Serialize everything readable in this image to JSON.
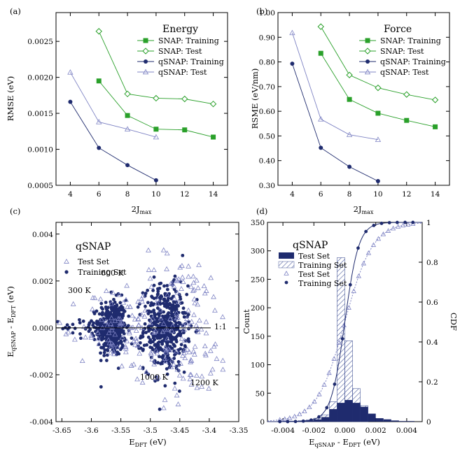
{
  "colors": {
    "green": "#2aa02a",
    "navy": "#1f2b6e",
    "hatch": "#4a5a9a",
    "lavender": "#7f84c4"
  },
  "chart_data": [
    {
      "panel": "(a)",
      "type": "line",
      "title": "Energy",
      "xlabel": "2J",
      "xlabel_sub": "max",
      "ylabel": "RMSE (eV)",
      "xlim": [
        3,
        15
      ],
      "ylim": [
        0.0005,
        0.0029
      ],
      "xticks": [
        "4",
        "6",
        "8",
        "10",
        "12",
        "14"
      ],
      "yticks": [
        "0.0005",
        "0.0010",
        "0.0015",
        "0.0020",
        "0.0025"
      ],
      "legend_position": "top-right",
      "series": [
        {
          "name": "SNAP: Training",
          "marker": "square",
          "color": "#2aa02a",
          "x": [
            6,
            8,
            10,
            12,
            14
          ],
          "y": [
            0.00195,
            0.00147,
            0.00128,
            0.00127,
            0.00117
          ]
        },
        {
          "name": "SNAP: Test",
          "marker": "diamond-open",
          "color": "#2aa02a",
          "x": [
            6,
            8,
            10,
            12,
            14
          ],
          "y": [
            0.00264,
            0.00177,
            0.00171,
            0.0017,
            0.00163
          ]
        },
        {
          "name": "qSNAP: Training",
          "marker": "circle",
          "color": "#1f2b6e",
          "x": [
            4,
            6,
            8,
            10
          ],
          "y": [
            0.00166,
            0.00102,
            0.00078,
            0.00057
          ]
        },
        {
          "name": "qSNAP: Test",
          "marker": "triangle-open",
          "color": "#7f84c4",
          "x": [
            4,
            6,
            8,
            10
          ],
          "y": [
            0.00207,
            0.00138,
            0.00128,
            0.00117
          ]
        }
      ]
    },
    {
      "panel": "(b)",
      "type": "line",
      "title": "Force",
      "xlabel": "2J",
      "xlabel_sub": "max",
      "ylabel": "RSME (eV/nm)",
      "xlim": [
        3,
        15
      ],
      "ylim": [
        0.3,
        1.0
      ],
      "xticks": [
        "4",
        "6",
        "8",
        "10",
        "12",
        "14"
      ],
      "yticks": [
        "0.30",
        "0.40",
        "0.50",
        "0.60",
        "0.70",
        "0.80",
        "0.90",
        "1.00"
      ],
      "legend_position": "top-right",
      "series": [
        {
          "name": "SNAP: Training",
          "marker": "square",
          "color": "#2aa02a",
          "x": [
            6,
            8,
            10,
            12,
            14
          ],
          "y": [
            0.835,
            0.648,
            0.592,
            0.563,
            0.537
          ]
        },
        {
          "name": "SNAP: Test",
          "marker": "diamond-open",
          "color": "#2aa02a",
          "x": [
            6,
            8,
            10,
            12,
            14
          ],
          "y": [
            0.943,
            0.747,
            0.695,
            0.668,
            0.646
          ]
        },
        {
          "name": "qSNAP: Training",
          "marker": "circle",
          "color": "#1f2b6e",
          "x": [
            4,
            6,
            8,
            10
          ],
          "y": [
            0.793,
            0.452,
            0.375,
            0.317
          ]
        },
        {
          "name": "qSNAP: Test",
          "marker": "triangle-open",
          "color": "#7f84c4",
          "x": [
            4,
            6,
            8,
            10
          ],
          "y": [
            0.918,
            0.568,
            0.505,
            0.485
          ]
        }
      ]
    },
    {
      "panel": "(c)",
      "type": "scatter",
      "title": "qSNAP",
      "xlabel": "E",
      "xlabel_sub": "DFT",
      "xlabel_tail": " (eV)",
      "ylabel": "E",
      "ylabel_sub1": "qSNAP",
      "ylabel_mid": " - E",
      "ylabel_sub2": "DFT",
      "ylabel_tail": " (eV)",
      "xlim": [
        -3.66,
        -3.35
      ],
      "ylim": [
        -0.004,
        0.0045
      ],
      "xticks": [
        "-3.65",
        "-3.6",
        "-3.55",
        "-3.5",
        "-3.45",
        "-3.4",
        "-3.35"
      ],
      "yticks": [
        "-0.004",
        "-0.002",
        "0.000",
        "0.002",
        "0.004"
      ],
      "legend": [
        "Test Set",
        "Training Set"
      ],
      "annotations": [
        "300 K",
        "600 K",
        "1000 K",
        "1200 K",
        "1:1"
      ],
      "clusters": [
        {
          "name": "Training Set",
          "cx": -3.565,
          "cy": 0.0,
          "sx": 0.012,
          "sy": 0.0006,
          "n": 420,
          "marker": "circle"
        },
        {
          "name": "Training Set",
          "cx": -3.475,
          "cy": 0.0,
          "sx": 0.018,
          "sy": 0.0009,
          "n": 480,
          "marker": "circle"
        },
        {
          "name": "Training Set",
          "cx": -3.6,
          "cy": 0.0,
          "sx": 0.025,
          "sy": 0.0002,
          "n": 40,
          "marker": "circle"
        },
        {
          "name": "Test Set",
          "cx": -3.56,
          "cy": 0.0,
          "sx": 0.03,
          "sy": 0.0009,
          "n": 70,
          "marker": "triangle"
        },
        {
          "name": "Test Set",
          "cx": -3.45,
          "cy": 0.0,
          "sx": 0.045,
          "sy": 0.0016,
          "n": 160,
          "marker": "triangle"
        }
      ]
    },
    {
      "panel": "(d)",
      "type": "bar",
      "title": "qSNAP",
      "xlabel": "E",
      "xlabel_sub1": "qSNAP",
      "xlabel_mid": " - E",
      "xlabel_sub2": "DFT",
      "xlabel_tail": "  (eV)",
      "ylabel": "Count",
      "ylabel_right": "CDF",
      "xlim": [
        -0.005,
        0.005
      ],
      "ylim": [
        0,
        350
      ],
      "ylim_right": [
        0,
        1
      ],
      "xticks": [
        "-0.004",
        "-0.002",
        "0.000",
        "0.002",
        "0.004"
      ],
      "yticks": [
        "0",
        "50",
        "100",
        "150",
        "200",
        "250",
        "300",
        "350"
      ],
      "yticks_right": [
        "0",
        "0.2",
        "0.4",
        "0.6",
        "0.8",
        "1"
      ],
      "legend": [
        "Test Set",
        "Training Set",
        "Test Set",
        "Training Set"
      ],
      "bin_edges": [
        -0.0045,
        -0.004,
        -0.0035,
        -0.003,
        -0.0025,
        -0.002,
        -0.0015,
        -0.001,
        -0.0005,
        0.0,
        0.0005,
        0.001,
        0.0015,
        0.002,
        0.0025,
        0.003,
        0.0035,
        0.004,
        0.0045
      ],
      "series": [
        {
          "name": "Training Set",
          "style": "hatched",
          "values": [
            0,
            1,
            1,
            2,
            3,
            6,
            12,
            35,
            288,
            142,
            58,
            28,
            0,
            0,
            0,
            0,
            0,
            0
          ]
        },
        {
          "name": "Test Set",
          "style": "solid",
          "values": [
            0,
            0,
            0,
            1,
            2,
            4,
            8,
            22,
            33,
            38,
            33,
            26,
            14,
            6,
            4,
            2,
            1,
            1
          ]
        }
      ],
      "cdf_curves": [
        {
          "name": "Test Set",
          "style": "dotted",
          "marker": "triangle-open",
          "center": 0.0,
          "scale": 0.0009
        },
        {
          "name": "Training Set",
          "style": "solid",
          "marker": "circle",
          "center": 0.0,
          "scale": 0.00045
        }
      ]
    }
  ],
  "panel_labels": [
    "(a)",
    "(b)",
    "(c)",
    "(d)"
  ]
}
